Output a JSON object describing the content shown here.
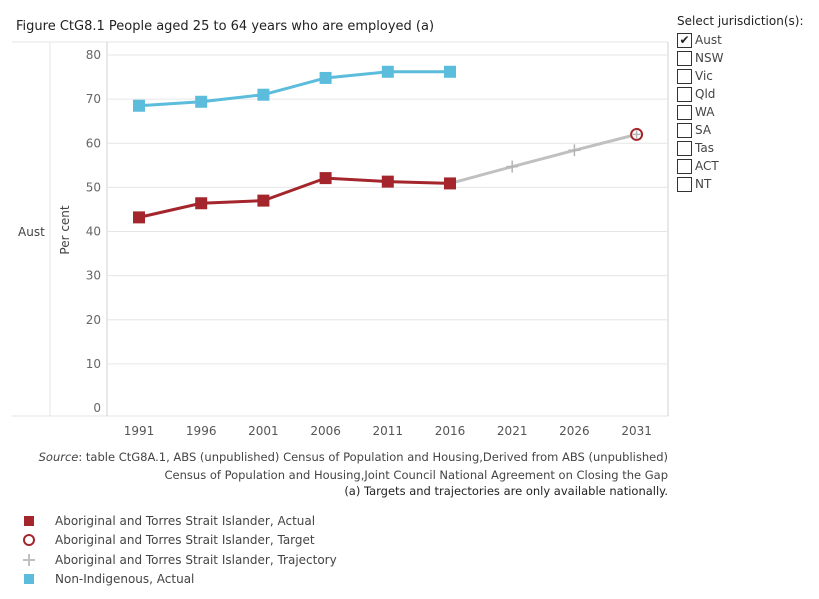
{
  "title": "Figure CtG8.1 People aged 25 to 64 years who are employed (a)",
  "jurisdiction_panel": {
    "title": "Select jurisdiction(s):",
    "items": [
      {
        "label": "Aust",
        "checked": true
      },
      {
        "label": "NSW",
        "checked": false
      },
      {
        "label": "Vic",
        "checked": false
      },
      {
        "label": "Qld",
        "checked": false
      },
      {
        "label": "WA",
        "checked": false
      },
      {
        "label": "SA",
        "checked": false
      },
      {
        "label": "Tas",
        "checked": false
      },
      {
        "label": "ACT",
        "checked": false
      },
      {
        "label": "NT",
        "checked": false
      }
    ]
  },
  "row_label": "Aust",
  "check_mark": "✔",
  "colors": {
    "indigenous": "#a4262c",
    "non_indigenous": "#5bbcdc",
    "trajectory": "#c0c0c0",
    "gridline": "#e6e6e6"
  },
  "source": {
    "label": "Source",
    "text": ": table CtG8A.1, ABS (unpublished) Census of Population and Housing,Derived from ABS (unpublished) Census of Population and Housing,Joint Council National Agreement on Closing the Gap"
  },
  "footnote": "(a) Targets and trajectories are only available nationally.",
  "legend": [
    {
      "label": "Aboriginal and Torres Strait Islander, Actual",
      "icon": "square-icon",
      "color": "#a4262c"
    },
    {
      "label": "Aboriginal and Torres Strait Islander, Target",
      "icon": "circle-icon",
      "color": "#a4262c"
    },
    {
      "label": "Aboriginal and Torres Strait Islander, Trajectory",
      "icon": "plus-icon",
      "color": "#c0c0c0"
    },
    {
      "label": "Non-Indigenous, Actual",
      "icon": "square-icon",
      "color": "#5bbcdc"
    }
  ],
  "chart_data": {
    "type": "line",
    "title": "Figure CtG8.1 People aged 25 to 64 years who are employed (a)",
    "xlabel": "",
    "ylabel": "Per cent",
    "categories": [
      "1991",
      "1996",
      "2001",
      "2006",
      "2011",
      "2016",
      "2021",
      "2026",
      "2031"
    ],
    "ylim": [
      0,
      80
    ],
    "yticks": [
      0,
      10,
      20,
      30,
      40,
      50,
      60,
      70,
      80
    ],
    "grid": true,
    "legend_position": "bottom-left",
    "series": [
      {
        "name": "Non-Indigenous, Actual",
        "key": "non_indigenous",
        "x": [
          "1991",
          "1996",
          "2001",
          "2006",
          "2011",
          "2016"
        ],
        "values": [
          68.5,
          69.4,
          71.0,
          74.8,
          76.2,
          76.2
        ]
      },
      {
        "name": "Aboriginal and Torres Strait Islander, Actual",
        "key": "indigenous_actual",
        "x": [
          "1991",
          "1996",
          "2001",
          "2006",
          "2011",
          "2016"
        ],
        "values": [
          43.2,
          46.4,
          47.0,
          52.1,
          51.3,
          50.9
        ]
      },
      {
        "name": "Aboriginal and Torres Strait Islander, Trajectory",
        "key": "indigenous_trajectory",
        "x": [
          "2016",
          "2021",
          "2026",
          "2031"
        ],
        "values": [
          50.9,
          54.7,
          58.4,
          62.0
        ]
      },
      {
        "name": "Aboriginal and Torres Strait Islander, Target",
        "key": "indigenous_target",
        "x": [
          "2031"
        ],
        "values": [
          62.0
        ]
      }
    ]
  }
}
